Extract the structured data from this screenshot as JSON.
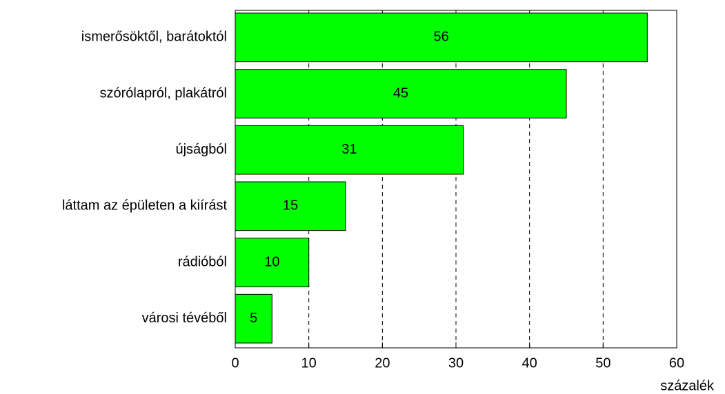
{
  "chart_data": {
    "type": "bar",
    "orientation": "horizontal",
    "categories": [
      "ismerősöktől, barátoktól",
      "szórólapról, plakátról",
      "újságból",
      "láttam az épületen a kiírást",
      "rádióból",
      "városi tévéből"
    ],
    "values": [
      56,
      45,
      31,
      15,
      10,
      5
    ],
    "color": "#00ff00",
    "xlabel": "százalék",
    "xlim": [
      0,
      60
    ],
    "xticks": [
      0,
      10,
      20,
      30,
      40,
      50,
      60
    ],
    "grid": true
  }
}
